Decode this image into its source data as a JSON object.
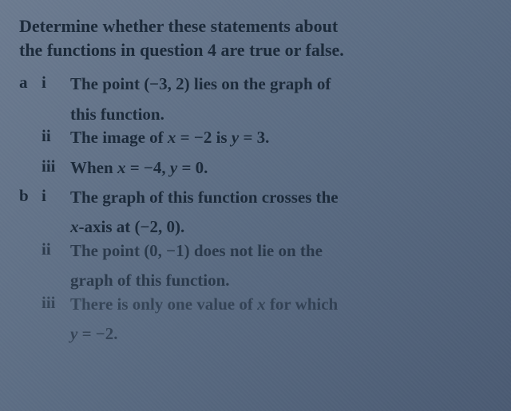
{
  "intro_line1": "Determine whether these statements about",
  "intro_line2": "the functions in question 4 are true or false.",
  "parts": {
    "a": {
      "label": "a",
      "items": [
        {
          "roman": "i",
          "text1": "The point (−3, 2) lies on the graph of",
          "text2": "this function."
        },
        {
          "roman": "ii",
          "text1": "The image of x = −2 is y = 3."
        },
        {
          "roman": "iii",
          "text1": "When x = −4, y = 0."
        }
      ]
    },
    "b": {
      "label": "b",
      "items": [
        {
          "roman": "i",
          "text1": "The graph of this function crosses the",
          "text2": "x-axis at (−2, 0)."
        },
        {
          "roman": "ii",
          "text1": "The point (0, −1) does not lie on the",
          "text2": "graph of this function."
        },
        {
          "roman": "iii",
          "text1": "There is only one value of x for which",
          "text2": "y = −2."
        }
      ]
    }
  },
  "styling": {
    "background_colors": [
      "#6b7a8f",
      "#5a6b82",
      "#4a5a72"
    ],
    "text_color": "#1a2838",
    "font_family": "Georgia, Times New Roman, serif",
    "intro_fontsize": 22,
    "body_fontsize": 21,
    "font_weight": 600
  }
}
